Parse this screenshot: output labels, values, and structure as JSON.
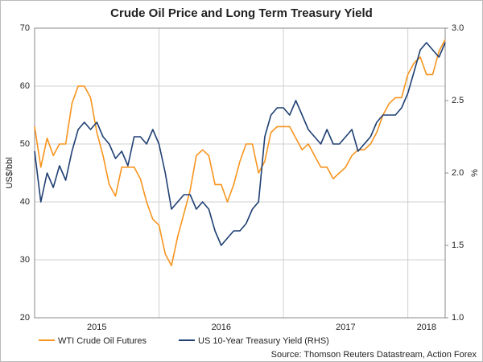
{
  "chart_data": {
    "type": "line",
    "title": "Crude Oil Price and Long Term Treasury Yield",
    "ylabel": "US$/bbl",
    "y2label": "%",
    "source": "Source: Thomson Reuters Datastream, Action Forex",
    "x": [
      2015.0,
      2015.05,
      2015.1,
      2015.15,
      2015.2,
      2015.25,
      2015.3,
      2015.35,
      2015.4,
      2015.45,
      2015.5,
      2015.55,
      2015.6,
      2015.65,
      2015.7,
      2015.75,
      2015.8,
      2015.85,
      2015.9,
      2015.95,
      2016.0,
      2016.05,
      2016.1,
      2016.15,
      2016.2,
      2016.25,
      2016.3,
      2016.35,
      2016.4,
      2016.45,
      2016.5,
      2016.55,
      2016.6,
      2016.65,
      2016.7,
      2016.75,
      2016.8,
      2016.85,
      2016.9,
      2016.95,
      2017.0,
      2017.05,
      2017.1,
      2017.15,
      2017.2,
      2017.25,
      2017.3,
      2017.35,
      2017.4,
      2017.45,
      2017.5,
      2017.55,
      2017.6,
      2017.65,
      2017.7,
      2017.75,
      2017.8,
      2017.85,
      2017.9,
      2017.95,
      2018.0,
      2018.05,
      2018.1,
      2018.15,
      2018.2,
      2018.25,
      2018.3
    ],
    "xlim": [
      2015,
      2018.3
    ],
    "xticks": [
      2015,
      2016,
      2017,
      2018
    ],
    "ylim": [
      20,
      70
    ],
    "yticks": [
      20,
      30,
      40,
      50,
      60,
      70
    ],
    "y2lim": [
      1.0,
      3.0
    ],
    "y2ticks": [
      {
        "value": 1.0,
        "label": "1.0"
      },
      {
        "value": 1.5,
        "label": "1.5"
      },
      {
        "value": 2.0,
        "label": "2.0"
      },
      {
        "value": 2.5,
        "label": "2.5"
      },
      {
        "value": 3.0,
        "label": "3.0"
      }
    ],
    "grid": true,
    "series": [
      {
        "name": "WTI Crude Oil Futures",
        "color": "#f7941d",
        "values": [
          53,
          46,
          51,
          48,
          50,
          50,
          57,
          60,
          60,
          58,
          52,
          48,
          43,
          41,
          46,
          46,
          46,
          44,
          40,
          37,
          36,
          31,
          29,
          34,
          38,
          42,
          48,
          49,
          48,
          43,
          43,
          40,
          43,
          47,
          50,
          50,
          45,
          47,
          52,
          53,
          53,
          53,
          51,
          49,
          50,
          48,
          46,
          46,
          44,
          45,
          46,
          48,
          49,
          49,
          50,
          52,
          55,
          57,
          58,
          58,
          62,
          64,
          65,
          62,
          62,
          66,
          68
        ]
      },
      {
        "name": "US 10-Year Treasury Yield (RHS)",
        "color": "#1f3f73",
        "axis": "y2",
        "values": [
          2.15,
          1.8,
          2.0,
          1.9,
          2.05,
          1.95,
          2.15,
          2.3,
          2.35,
          2.3,
          2.35,
          2.25,
          2.2,
          2.1,
          2.15,
          2.05,
          2.25,
          2.25,
          2.2,
          2.3,
          2.2,
          2.0,
          1.75,
          1.8,
          1.85,
          1.85,
          1.75,
          1.8,
          1.75,
          1.6,
          1.5,
          1.55,
          1.6,
          1.6,
          1.65,
          1.75,
          1.8,
          2.25,
          2.4,
          2.45,
          2.45,
          2.4,
          2.5,
          2.4,
          2.3,
          2.25,
          2.2,
          2.3,
          2.2,
          2.2,
          2.25,
          2.3,
          2.15,
          2.2,
          2.25,
          2.35,
          2.4,
          2.4,
          2.4,
          2.45,
          2.55,
          2.7,
          2.85,
          2.9,
          2.85,
          2.8,
          2.9
        ]
      }
    ]
  }
}
